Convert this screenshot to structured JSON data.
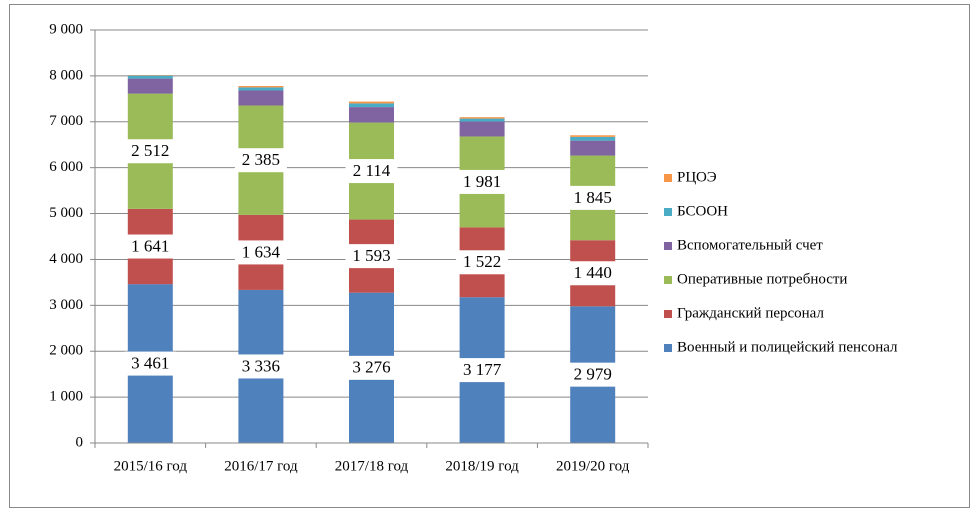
{
  "chart_data": {
    "type": "stacked_bar",
    "categories": [
      "2015/16 год",
      "2016/17 год",
      "2017/18 год",
      "2018/19 год",
      "2019/20 год"
    ],
    "series": [
      {
        "name": "Военный и полицейский пенсонал",
        "color": "#4f81bd",
        "values": [
          3461,
          3336,
          3276,
          3177,
          2979
        ],
        "value_labels": [
          "3 461",
          "3 336",
          "3 276",
          "3 177",
          "2 979"
        ]
      },
      {
        "name": "Гражданский персонал",
        "color": "#c0504d",
        "values": [
          1641,
          1634,
          1593,
          1522,
          1440
        ],
        "value_labels": [
          "1 641",
          "1 634",
          "1 593",
          "1 522",
          "1 440"
        ]
      },
      {
        "name": "Оперативные потребности",
        "color": "#9bbb59",
        "values": [
          2512,
          2385,
          2114,
          1981,
          1845
        ],
        "value_labels": [
          "2 512",
          "2 385",
          "2 114",
          "1 981",
          "1 845"
        ]
      },
      {
        "name": "Вспомогательный счет",
        "color": "#8064a2",
        "values": [
          327,
          327,
          337,
          325,
          325
        ]
      },
      {
        "name": "БСООН",
        "color": "#4bacc6",
        "values": [
          66,
          68,
          80,
          65,
          82
        ]
      },
      {
        "name": "РЦОЭ",
        "color": "#f79646",
        "values": [
          10,
          30,
          40,
          30,
          35
        ]
      }
    ],
    "ylim": [
      0,
      9000
    ],
    "yticks": [
      0,
      {
        "value": 1000,
        "label": "1 000"
      },
      {
        "value": 2000,
        "label": "2 000"
      },
      {
        "value": 3000,
        "label": "3 000"
      },
      {
        "value": 4000,
        "label": "4 000"
      },
      {
        "value": 5000,
        "label": "5 000"
      },
      {
        "value": 6000,
        "label": "6 000"
      },
      {
        "value": 7000,
        "label": "7 000"
      },
      {
        "value": 8000,
        "label": "8 000"
      },
      {
        "value": 9000,
        "label": "9 000"
      }
    ],
    "grid": true,
    "legend": "right"
  }
}
